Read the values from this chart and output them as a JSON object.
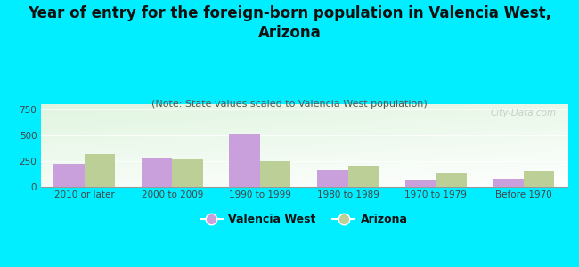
{
  "title": "Year of entry for the foreign-born population in Valencia West,\nArizona",
  "subtitle": "(Note: State values scaled to Valencia West population)",
  "categories": [
    "2010 or later",
    "2000 to 2009",
    "1990 to 1999",
    "1980 to 1989",
    "1970 to 1979",
    "Before 1970"
  ],
  "valencia_west": [
    220,
    285,
    510,
    160,
    70,
    75
  ],
  "arizona": [
    320,
    265,
    250,
    200,
    135,
    155
  ],
  "bar_color_vw": "#c9a0dc",
  "bar_color_az": "#bccf96",
  "background_color": "#00eeff",
  "ylim": [
    0,
    800
  ],
  "yticks": [
    0,
    250,
    500,
    750
  ],
  "watermark": "City-Data.com",
  "legend_vw": "Valencia West",
  "legend_az": "Arizona",
  "title_fontsize": 12,
  "subtitle_fontsize": 8,
  "tick_fontsize": 7.5,
  "bar_width": 0.35
}
